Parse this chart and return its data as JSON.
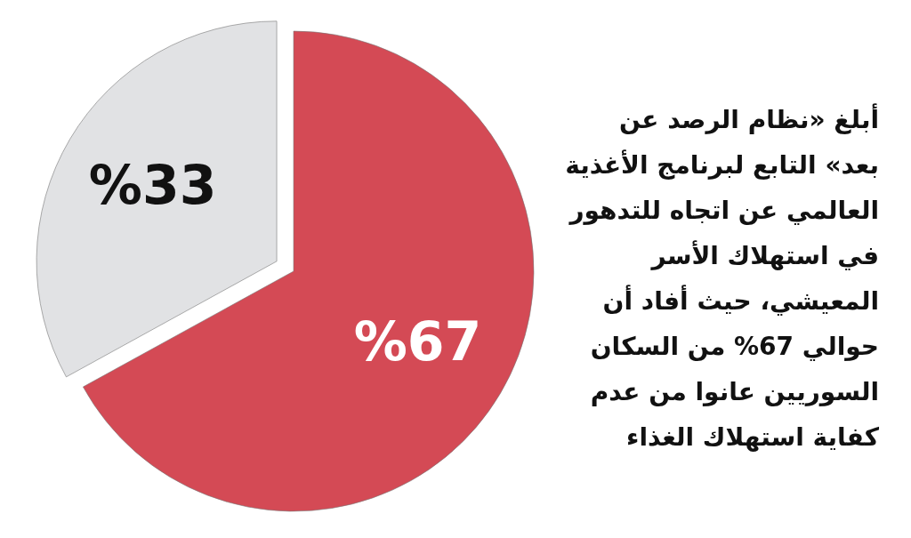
{
  "chart_data": {
    "type": "pie",
    "categories": [
      null,
      null
    ],
    "values": [
      67,
      33
    ],
    "colors": [
      "#d44a55",
      "#e1e2e4"
    ],
    "value_labels": [
      "%67",
      "%33"
    ],
    "annotations": [
      "أبلغ «نظام الرصد عن\nبعد» التابع لبرنامج الأغذية\nالعالمي عن اتجاه للتدهور\nفي استهلاك الأسر\nالمعيشي، حيث أفاد أن\nحوالي 67% من السكان\nالسوريين عانوا من عدم\nكفاية استهلاك الغذاء"
    ]
  }
}
